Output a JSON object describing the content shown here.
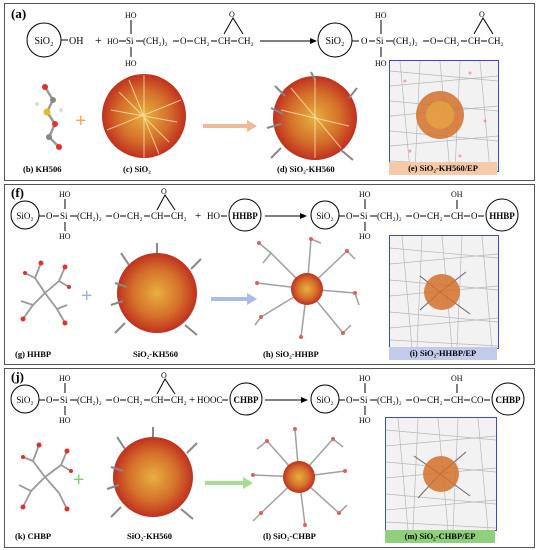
{
  "panels": [
    {
      "label": "(a)",
      "caps": {
        "b": "(b)  KH506",
        "c": "(c)  SiO₂",
        "d": "(d)   SiO₂-KH560",
        "e": "(e)    SiO₂-KH560/EP"
      },
      "badge_color": "#f6c9a8",
      "arrow_color": "#f4b894",
      "plus_color": "#f2a36a"
    },
    {
      "label": "(f)",
      "caps": {
        "g": "(g)  HHBP",
        "c": "SiO₂-KH560",
        "d": "(h)  SiO₂-HHBP",
        "e": "(i)    SiO₂-HHBP/EP"
      },
      "badge_color": "#c3cbec",
      "arrow_color": "#a9bde6",
      "plus_color": "#9fb0e4"
    },
    {
      "label": "(j)",
      "caps": {
        "k": "(k)   CHBP",
        "c": "SiO₂-KH560",
        "d": "(l)   SiO₂-CHBP",
        "e": "(m)   SiO₂-CHBP/EP"
      },
      "badge_color": "#8fd07a",
      "arrow_color": "#a6dd92",
      "plus_color": "#7fd06a"
    }
  ],
  "eq": {
    "sio2": "SiO₂",
    "oh": "OH",
    "plus": "+",
    "ho": "HO",
    "si": "Si",
    "o": "O",
    "ch22": "(CH₂)₂",
    "ch2": "CH₂",
    "ch": "CH",
    "dash_o": "O",
    "hhbp": "HHBP",
    "chbp": "CHBP",
    "hooc": "HOOC",
    "co": "CO"
  }
}
